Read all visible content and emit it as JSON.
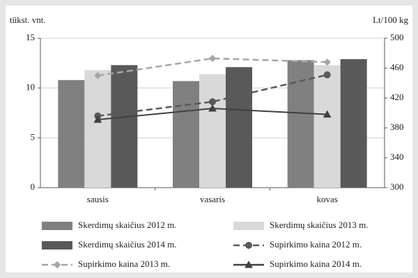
{
  "chart_data": {
    "type": "bar",
    "y_label": "tūkst. vnt.",
    "y2_label": "Lt/100 kg",
    "categories": [
      "sausis",
      "vasaris",
      "kovas"
    ],
    "ylim": [
      0,
      15
    ],
    "yticks": [
      0,
      5,
      10,
      15
    ],
    "y2lim": [
      300,
      500
    ],
    "y2ticks": [
      300,
      340,
      380,
      420,
      460,
      500
    ],
    "grid": true,
    "series": [
      {
        "name": "Skerdimų skaičius 2012 m.",
        "type": "bar",
        "color": "#808080",
        "values": [
          10.8,
          10.7,
          12.8
        ]
      },
      {
        "name": "Skerdimų skaičius 2013 m.",
        "type": "bar",
        "color": "#d9d9d9",
        "values": [
          11.8,
          11.4,
          12.3
        ]
      },
      {
        "name": "Skerdimų skaičius 2014 m.",
        "type": "bar",
        "color": "#595959",
        "values": [
          12.3,
          12.1,
          12.9
        ]
      },
      {
        "name": "Supirkimo kaina 2012 m.",
        "type": "line",
        "axis": "y2",
        "color": "#595959",
        "dash": "dashed",
        "marker": "circle",
        "values": [
          396,
          415,
          451
        ]
      },
      {
        "name": "Supirkimo kaina 2013 m.",
        "type": "line",
        "axis": "y2",
        "color": "#a6a6a6",
        "dash": "dashed",
        "marker": "diamond",
        "values": [
          450,
          473,
          468
        ]
      },
      {
        "name": "Supirkimo kaina 2014 m.",
        "type": "line",
        "axis": "y2",
        "color": "#404040",
        "dash": "solid",
        "marker": "triangle",
        "values": [
          391,
          406,
          398
        ]
      }
    ]
  }
}
